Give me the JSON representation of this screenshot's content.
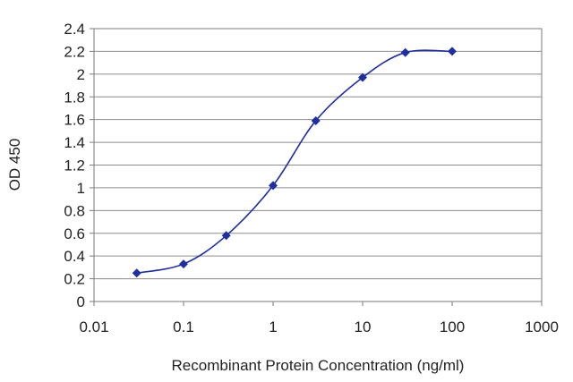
{
  "chart_data": {
    "type": "line",
    "title": "",
    "xlabel": "Recombinant Protein Concentration (ng/ml)",
    "ylabel": "OD 450",
    "x_scale": "log",
    "xlim": [
      0.01,
      1000
    ],
    "ylim": [
      0,
      2.4
    ],
    "x_ticks": [
      "0.01",
      "0.1",
      "1",
      "10",
      "100",
      "1000"
    ],
    "y_ticks": [
      "0",
      "0.2",
      "0.4",
      "0.6",
      "0.8",
      "1",
      "1.2",
      "1.4",
      "1.6",
      "1.8",
      "2",
      "2.2",
      "2.4"
    ],
    "grid": true,
    "legend": "none",
    "series": [
      {
        "color": "#1f2fa0",
        "x": [
          0.03,
          0.1,
          0.3,
          1,
          3,
          10,
          30,
          100
        ],
        "y": [
          0.25,
          0.33,
          0.58,
          1.02,
          1.59,
          1.97,
          2.19,
          2.2
        ]
      }
    ]
  }
}
